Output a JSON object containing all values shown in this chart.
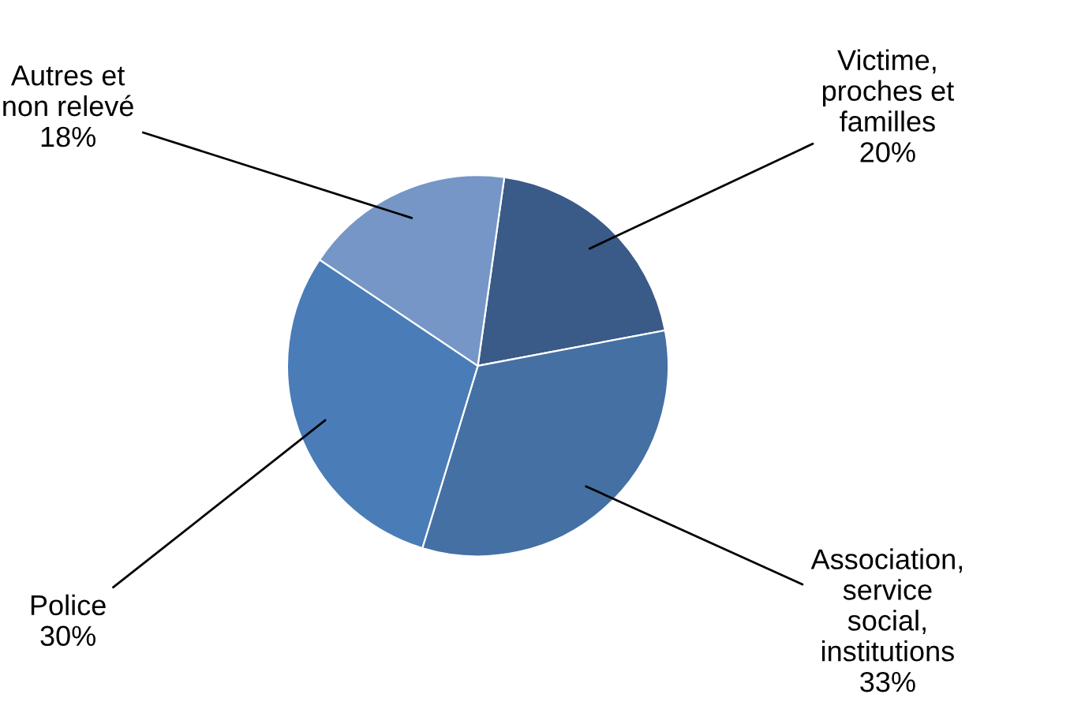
{
  "chart_data": {
    "type": "pie",
    "categories": [
      "Victime,\nproches et\nfamilles",
      "Association,\nservice\nsocial,\ninstitutions",
      "Police",
      "Autres et\nnon relevé"
    ],
    "values": [
      20,
      33,
      30,
      18
    ],
    "colors": [
      "#3a5a88",
      "#4470a4",
      "#4a7cb8",
      "#7596c6"
    ],
    "value_labels": [
      "20%",
      "33%",
      "30%",
      "18%"
    ],
    "legend": false
  }
}
